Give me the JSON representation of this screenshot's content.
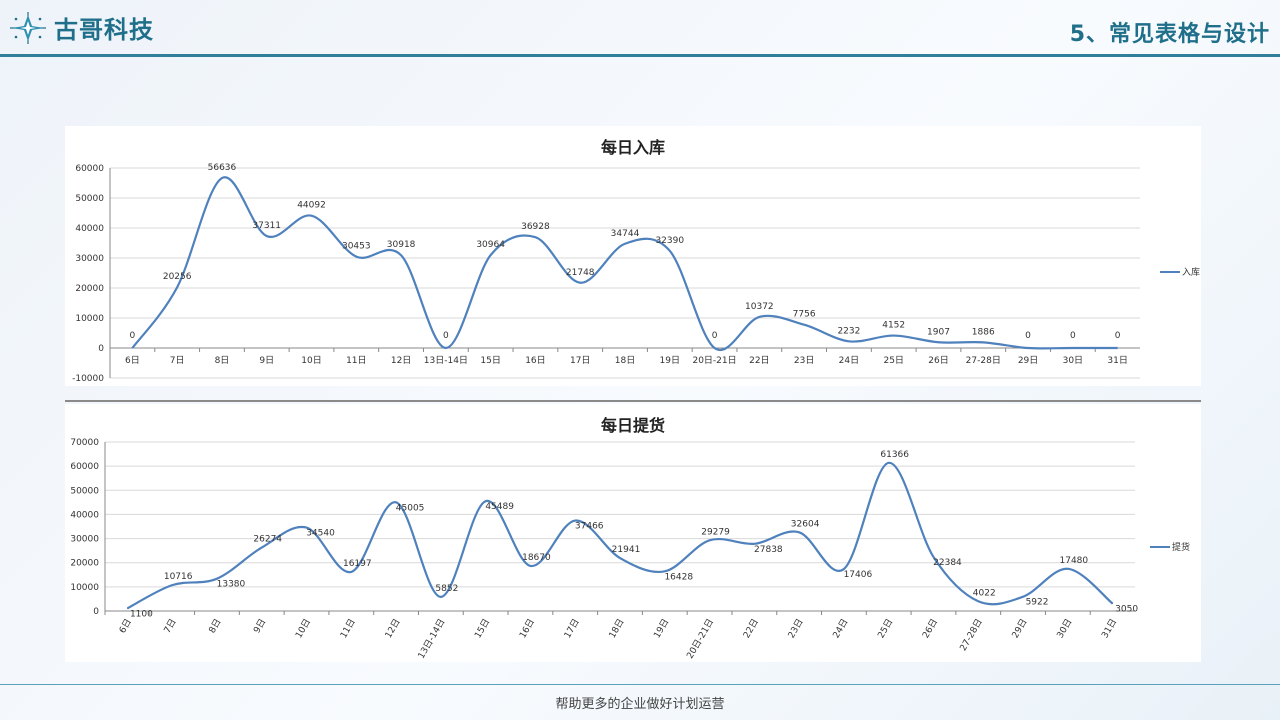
{
  "header": {
    "brand": "古哥科技",
    "slide_title": "5、常见表格与设计"
  },
  "footer": {
    "text": "帮助更多的企业做好计划运营"
  },
  "colors": {
    "line": "#4f81bd",
    "accent": "#1f6f8a",
    "grid": "#d9d9d9"
  },
  "chart_data": [
    {
      "type": "line",
      "title": "每日入库",
      "categories": [
        "6日",
        "7日",
        "8日",
        "9日",
        "10日",
        "11日",
        "12日",
        "13日-14日",
        "15日",
        "16日",
        "17日",
        "18日",
        "19日",
        "20日-21日",
        "22日",
        "23日",
        "24日",
        "25日",
        "26日",
        "27-28日",
        "29日",
        "30日",
        "31日"
      ],
      "series": [
        {
          "name": "入库",
          "values": [
            0,
            20256,
            56636,
            37311,
            44092,
            30453,
            30918,
            0,
            30964,
            36928,
            21748,
            34744,
            32390,
            0,
            10372,
            7756,
            2232,
            4152,
            1907,
            1886,
            0,
            0,
            0
          ]
        }
      ],
      "data_labels": [
        "0",
        "20256",
        "56636",
        "37311",
        "44092",
        "30453",
        "30918",
        "0",
        "30964",
        "36928",
        "21748",
        "34744",
        "32390",
        "0",
        "10372",
        "7756",
        "2232",
        "4152",
        "1907",
        "1886",
        "0",
        "0",
        "0"
      ],
      "ylim": [
        -10000,
        60000
      ],
      "yticks": [
        "-10000",
        "0",
        "10000",
        "20000",
        "30000",
        "40000",
        "50000",
        "60000"
      ],
      "legend": "right",
      "grid": true
    },
    {
      "type": "line",
      "title": "每日提货",
      "categories": [
        "6日",
        "7日",
        "8日",
        "9日",
        "10日",
        "11日",
        "12日",
        "13日-14日",
        "15日",
        "16日",
        "17日",
        "18日",
        "19日",
        "20日-21日",
        "22日",
        "23日",
        "24日",
        "25日",
        "26日",
        "27-28日",
        "29日",
        "30日",
        "31日"
      ],
      "series": [
        {
          "name": "提货",
          "values": [
            1100,
            10716,
            13380,
            26274,
            34540,
            16197,
            45005,
            5852,
            45489,
            18670,
            37466,
            21941,
            16428,
            29279,
            27838,
            32604,
            17406,
            61366,
            22384,
            4022,
            5922,
            17480,
            3050
          ]
        }
      ],
      "data_labels": [
        "1100",
        "10716",
        "13380",
        "26274",
        "34540",
        "16197",
        "45005",
        "5852",
        "45489",
        "18670",
        "37466",
        "21941",
        "16428",
        "29279",
        "27838",
        "32604",
        "17406",
        "61366",
        "22384",
        "4022",
        "5922",
        "17480",
        "3050"
      ],
      "ylim": [
        0,
        70000
      ],
      "yticks": [
        "0",
        "10000",
        "20000",
        "30000",
        "40000",
        "50000",
        "60000",
        "70000"
      ],
      "legend": "right",
      "grid": true
    }
  ]
}
